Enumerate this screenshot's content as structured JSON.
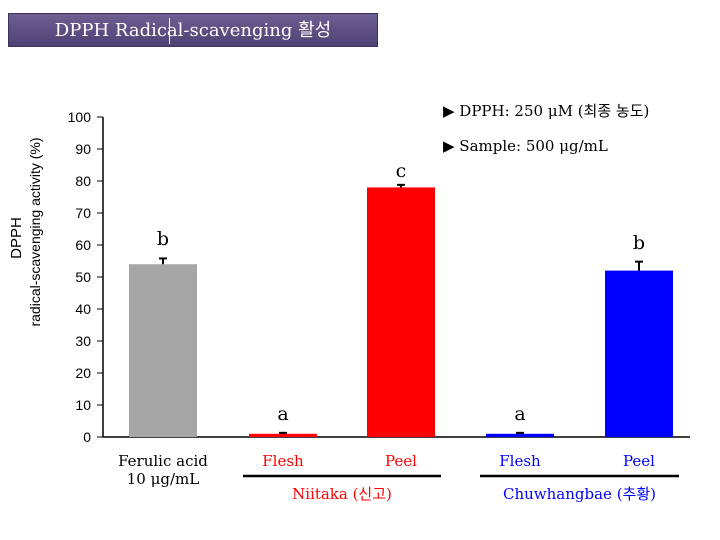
{
  "header": {
    "title": "DPPH Radical-scavenging 활성"
  },
  "chart_data": {
    "type": "bar",
    "title": "DPPH Radical-scavenging 활성",
    "ylabel_lines": [
      "DPPH",
      "radical-scavenging activity (%)"
    ],
    "ylim": [
      0,
      100
    ],
    "yticks": [
      0,
      10,
      20,
      30,
      40,
      50,
      60,
      70,
      80,
      90,
      100
    ],
    "categories": [
      "Ferulic acid\n10 μg/mL",
      "Flesh",
      "Peel",
      "Flesh",
      "Peel"
    ],
    "values": [
      54,
      1,
      78,
      1,
      52
    ],
    "errors": [
      1.8,
      0.3,
      0.8,
      0.3,
      2.8
    ],
    "colors": [
      "#a6a6a6",
      "#ff0000",
      "#ff0000",
      "#0000ff",
      "#0000ff"
    ],
    "letters": [
      "b",
      "a",
      "c",
      "a",
      "b"
    ],
    "groups": [
      {
        "label": "Niitaka (신고)",
        "from": 1,
        "to": 2
      },
      {
        "label": "Chuwhangbae (추황)",
        "from": 3,
        "to": 4
      }
    ],
    "annotations": [
      "▶ DPPH: 250 μM (최종 농도)",
      "▶ Sample: 500 μg/mL"
    ]
  }
}
